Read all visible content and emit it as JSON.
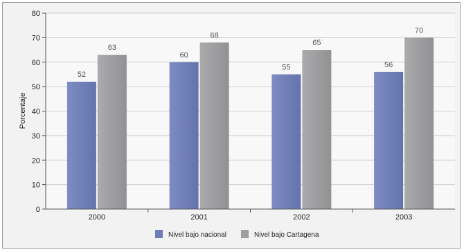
{
  "chart_data": {
    "type": "bar",
    "title": "",
    "xlabel": "",
    "ylabel": "Porcentaje",
    "categories": [
      "2000",
      "2001",
      "2002",
      "2003"
    ],
    "ylim": [
      0,
      80
    ],
    "yticks": [
      0,
      10,
      20,
      30,
      40,
      50,
      60,
      70,
      80
    ],
    "grid": true,
    "legend_position": "bottom",
    "series": [
      {
        "name": "Nivel bajo nacional",
        "values": [
          52,
          60,
          55,
          56
        ],
        "color": "#6f7fb6"
      },
      {
        "name": "Nivel bajo Cartagena",
        "values": [
          63,
          68,
          65,
          70
        ],
        "color": "#9d9d9f"
      }
    ]
  }
}
